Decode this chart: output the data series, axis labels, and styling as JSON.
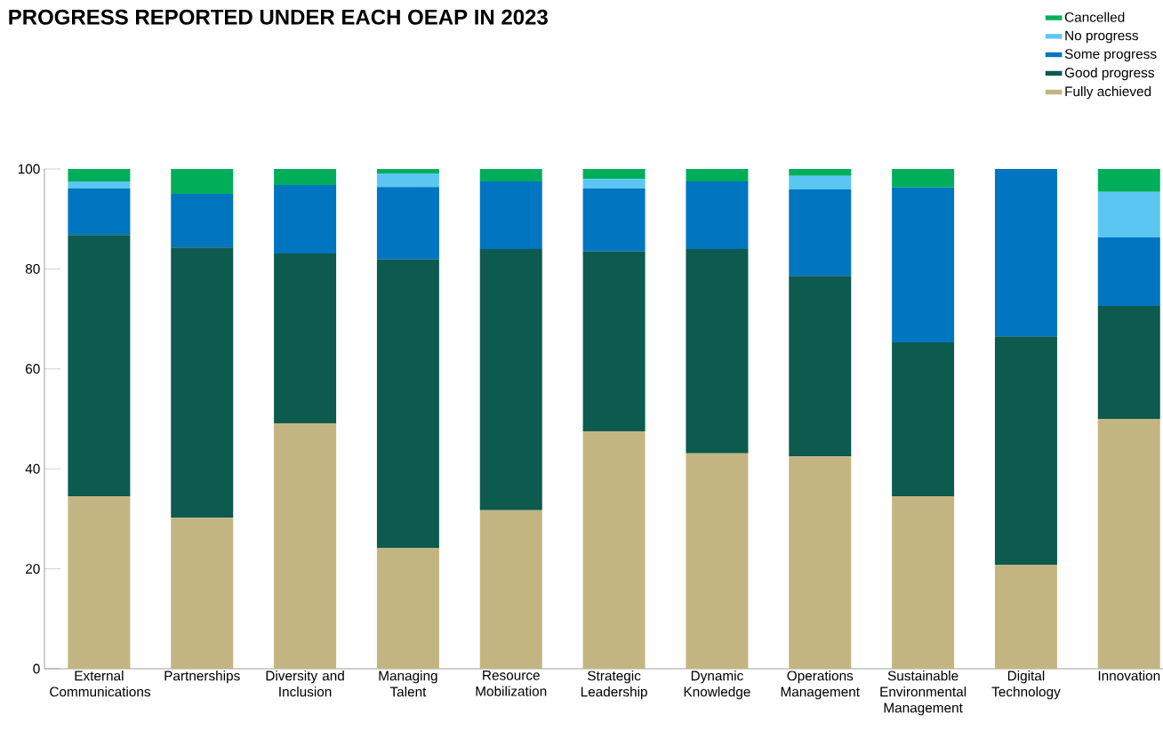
{
  "chart_data": {
    "type": "bar",
    "stacked": true,
    "title": "PROGRESS REPORTED UNDER EACH OEAP IN 2023",
    "categories": [
      "External Communications",
      "Partnerships",
      "Diversity and Inclusion",
      "Managing Talent",
      "Resource Mobilization",
      "Strategic Leadership",
      "Dynamic Knowledge",
      "Operations Management",
      "Sustainable Environmental Management",
      "Digital Technology",
      "Innovation"
    ],
    "series": [
      {
        "name": "Fully achieved",
        "color": "#c3b582",
        "values": [
          34.5,
          30.2,
          49.1,
          24.2,
          31.7,
          47.5,
          43.1,
          42.5,
          34.5,
          20.8,
          50.0
        ]
      },
      {
        "name": "Good progress",
        "color": "#0d5a4f",
        "values": [
          52.3,
          54.1,
          34.0,
          57.7,
          52.3,
          36.0,
          40.9,
          36.1,
          30.8,
          45.7,
          22.6
        ]
      },
      {
        "name": "Some progress",
        "color": "#0075c0",
        "values": [
          9.3,
          10.7,
          13.7,
          14.5,
          13.5,
          12.6,
          13.5,
          17.3,
          31.0,
          33.5,
          13.7
        ]
      },
      {
        "name": "No progress",
        "color": "#5bc6f2",
        "values": [
          1.4,
          null,
          null,
          2.7,
          null,
          1.9,
          null,
          2.7,
          null,
          null,
          9.1
        ]
      },
      {
        "name": "Cancelled",
        "color": "#00ae5a",
        "values": [
          2.5,
          5.0,
          3.2,
          0.9,
          2.5,
          2.0,
          2.5,
          1.4,
          3.7,
          null,
          4.6
        ]
      }
    ],
    "ylim": [
      0,
      100
    ],
    "yticks": [
      0,
      20,
      40,
      60,
      80,
      100
    ],
    "grid": false,
    "legend": "top right"
  }
}
